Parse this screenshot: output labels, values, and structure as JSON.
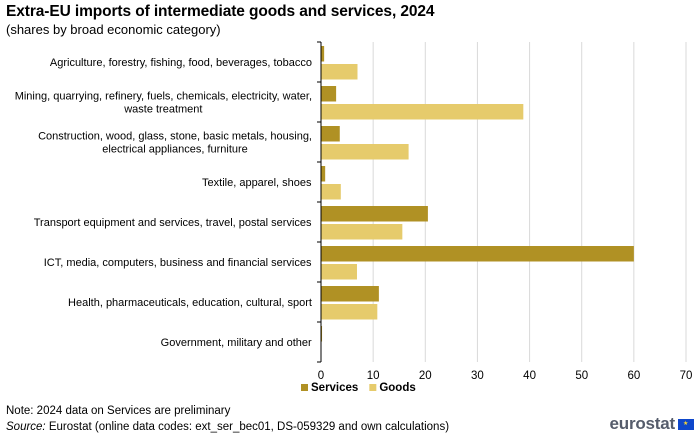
{
  "title": "Extra-EU imports of intermediate goods and services, 2024",
  "subtitle": "(shares by broad economic category)",
  "note": "Note: 2024 data on Services are preliminary",
  "source_label": "Source:",
  "source_text": " Eurostat (online data codes: ext_ser_bec01, DS-059329 and own calculations)",
  "logo": "eurostat",
  "colors": {
    "services": "#b09124",
    "goods": "#e6cb6c",
    "grid": "#d9d9d9",
    "axis": "#000000"
  },
  "chart_data": {
    "type": "bar",
    "orientation": "horizontal",
    "title": "Extra-EU imports of intermediate goods and services, 2024",
    "subtitle": "(shares by broad economic category)",
    "categories": [
      [
        "Agriculture, forestry, fishing, food, beverages, tobacco"
      ],
      [
        "Mining, quarrying, refinery, fuels, chemicals, electricity, water,",
        "waste treatment"
      ],
      [
        "Construction, wood, glass, stone, basic metals, housing,",
        "electrical appliances, furniture"
      ],
      [
        "Textile, apparel, shoes"
      ],
      [
        "Transport equipment and services, travel, postal services"
      ],
      [
        "ICT, media, computers, business and financial services"
      ],
      [
        "Health, pharmaceuticals, education, cultural, sport"
      ],
      [
        "Government, military and other"
      ]
    ],
    "series": [
      {
        "name": "Services",
        "values": [
          0.6,
          2.9,
          3.6,
          0.8,
          20.5,
          60.0,
          11.1,
          0.2
        ]
      },
      {
        "name": "Goods",
        "values": [
          7.0,
          38.8,
          16.8,
          3.8,
          15.6,
          6.9,
          10.8,
          0.0
        ]
      }
    ],
    "xlim": [
      0,
      70
    ],
    "xticks": [
      0,
      10,
      20,
      30,
      40,
      50,
      60,
      70
    ],
    "grid": true,
    "legend": "bottom-center",
    "xlabel": "",
    "ylabel": ""
  }
}
